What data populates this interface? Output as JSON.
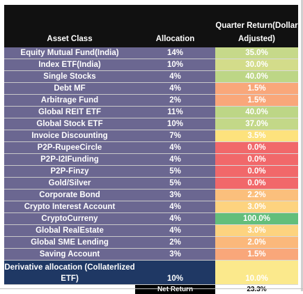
{
  "headers": {
    "asset_class": "Asset Class",
    "allocation": "Allocation",
    "quarter_return": "Quarter Return(Dollar Adjusted)"
  },
  "rows": [
    {
      "asset": "Equity Mutual Fund(India)",
      "allocation": "14%",
      "return": "35.0%",
      "color": "#c6d98a"
    },
    {
      "asset": "Index ETF(India)",
      "allocation": "10%",
      "return": "30.0%",
      "color": "#d3dc8a"
    },
    {
      "asset": "Single Stocks",
      "allocation": "4%",
      "return": "40.0%",
      "color": "#bdd686"
    },
    {
      "asset": "Debt MF",
      "allocation": "4%",
      "return": "1.5%",
      "color": "#f9a77a"
    },
    {
      "asset": "Arbitrage Fund",
      "allocation": "2%",
      "return": "1.5%",
      "color": "#f9a77a"
    },
    {
      "asset": "Global REIT ETF",
      "allocation": "11%",
      "return": "40.0%",
      "color": "#bdd686"
    },
    {
      "asset": "Global  Stock ETF",
      "allocation": "10%",
      "return": "37.0%",
      "color": "#c3d888"
    },
    {
      "asset": "Invoice Discounting",
      "allocation": "7%",
      "return": "3.5%",
      "color": "#fde27d"
    },
    {
      "asset": "P2P-RupeeCircle",
      "allocation": "4%",
      "return": "0.0%",
      "color": "#f1686a"
    },
    {
      "asset": "P2P-I2IFunding",
      "allocation": "4%",
      "return": "0.0%",
      "color": "#f1686a"
    },
    {
      "asset": "P2P-Finzy",
      "allocation": "5%",
      "return": "0.0%",
      "color": "#f1686a"
    },
    {
      "asset": "Gold/Silver",
      "allocation": "5%",
      "return": "0.0%",
      "color": "#f1686a"
    },
    {
      "asset": "Corporate Bond",
      "allocation": "3%",
      "return": "2.2%",
      "color": "#fbbf7c"
    },
    {
      "asset": "Crypto Interest Account",
      "allocation": "4%",
      "return": "3.0%",
      "color": "#fdd37f"
    },
    {
      "asset": "CryptoCurreny",
      "allocation": "4%",
      "return": "100.0%",
      "color": "#63be7b"
    },
    {
      "asset": "Global RealEstate",
      "allocation": "4%",
      "return": "3.0%",
      "color": "#fdd37f"
    },
    {
      "asset": "Global SME Lending",
      "allocation": "2%",
      "return": "2.0%",
      "color": "#fbb87b"
    },
    {
      "asset": "Saving Account",
      "allocation": "3%",
      "return": "1.5%",
      "color": "#f9a77a"
    }
  ],
  "derivative": {
    "asset": "Derivative allocation (Collaterlized ETF)",
    "allocation": "10%",
    "return": "10.0%",
    "color": "#fbe98c"
  },
  "footer": {
    "label": "Net Return",
    "value": "23.3%"
  }
}
